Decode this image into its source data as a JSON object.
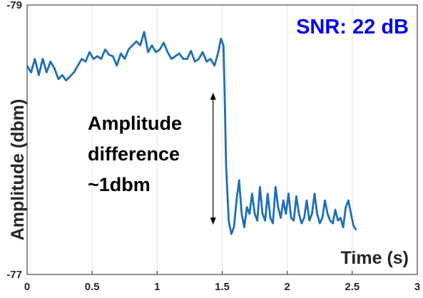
{
  "chart_data": {
    "type": "line",
    "title": "",
    "xlabel": "Time (s)",
    "ylabel": "Amplitude (dbm)",
    "xlim": [
      0,
      3
    ],
    "ylim": [
      -77,
      -79
    ],
    "x_ticks": [
      "0",
      "0.5",
      "1",
      "1.5",
      "2",
      "2.5",
      "3"
    ],
    "x_tick_values": [
      0,
      0.5,
      1,
      1.5,
      2,
      2.5,
      3
    ],
    "y_ticks": [
      "-79",
      "-77"
    ],
    "y_tick_values": [
      -79,
      -77
    ],
    "grid": "vertical gridlines only",
    "line_color": "#1f6fb5",
    "annotation": {
      "lines": [
        "Amplitude",
        "difference",
        "~1dbm"
      ],
      "arrow_x": 1.43,
      "arrow_y_top": -78.35,
      "arrow_y_bottom": -77.37
    },
    "snr_label": {
      "text": "SNR: 22 dB",
      "color": "#0000ee"
    },
    "series": [
      {
        "x": [
          0.0,
          0.03,
          0.06,
          0.09,
          0.12,
          0.15,
          0.18,
          0.21,
          0.24,
          0.27,
          0.3,
          0.33,
          0.36,
          0.39,
          0.42,
          0.45,
          0.48,
          0.51,
          0.54,
          0.57,
          0.6,
          0.63,
          0.66,
          0.69,
          0.72,
          0.75,
          0.78,
          0.81,
          0.84,
          0.87,
          0.9,
          0.93,
          0.96,
          0.99,
          1.02,
          1.05,
          1.08,
          1.11,
          1.14,
          1.17,
          1.2,
          1.23,
          1.26,
          1.29,
          1.32,
          1.35,
          1.38,
          1.41,
          1.44,
          1.47,
          1.49,
          1.51,
          1.52,
          1.53,
          1.55,
          1.57,
          1.59,
          1.61,
          1.63,
          1.65,
          1.67,
          1.69,
          1.71,
          1.73,
          1.75,
          1.77,
          1.79,
          1.81,
          1.83,
          1.85,
          1.87,
          1.89,
          1.91,
          1.93,
          1.95,
          1.97,
          1.99,
          2.01,
          2.03,
          2.05,
          2.07,
          2.09,
          2.11,
          2.13,
          2.15,
          2.17,
          2.19,
          2.21,
          2.23,
          2.25,
          2.27,
          2.29,
          2.31,
          2.33,
          2.35,
          2.37,
          2.39,
          2.41,
          2.43,
          2.45,
          2.47,
          2.49,
          2.51,
          2.53
        ],
        "y": [
          -78.55,
          -78.5,
          -78.6,
          -78.48,
          -78.6,
          -78.5,
          -78.58,
          -78.53,
          -78.45,
          -78.48,
          -78.44,
          -78.47,
          -78.5,
          -78.55,
          -78.6,
          -78.58,
          -78.65,
          -78.6,
          -78.62,
          -78.6,
          -78.67,
          -78.63,
          -78.62,
          -78.55,
          -78.64,
          -78.6,
          -78.67,
          -78.7,
          -78.73,
          -78.7,
          -78.8,
          -78.65,
          -78.7,
          -78.65,
          -78.67,
          -78.72,
          -78.65,
          -78.6,
          -78.62,
          -78.64,
          -78.6,
          -78.6,
          -78.66,
          -78.58,
          -78.6,
          -78.65,
          -78.58,
          -78.6,
          -78.55,
          -78.65,
          -78.75,
          -78.7,
          -78.3,
          -77.8,
          -77.4,
          -77.3,
          -77.35,
          -77.55,
          -77.7,
          -77.45,
          -77.35,
          -77.5,
          -77.45,
          -77.6,
          -77.45,
          -77.4,
          -77.65,
          -77.45,
          -77.4,
          -77.6,
          -77.42,
          -77.38,
          -77.65,
          -77.5,
          -77.42,
          -77.55,
          -77.45,
          -77.6,
          -77.42,
          -77.4,
          -77.58,
          -77.45,
          -77.38,
          -77.42,
          -77.55,
          -77.4,
          -77.45,
          -77.6,
          -77.45,
          -77.38,
          -77.42,
          -77.55,
          -77.45,
          -77.4,
          -77.38,
          -77.48,
          -77.4,
          -77.42,
          -77.35,
          -77.5,
          -77.55,
          -77.45,
          -77.36,
          -77.33
        ]
      }
    ]
  }
}
